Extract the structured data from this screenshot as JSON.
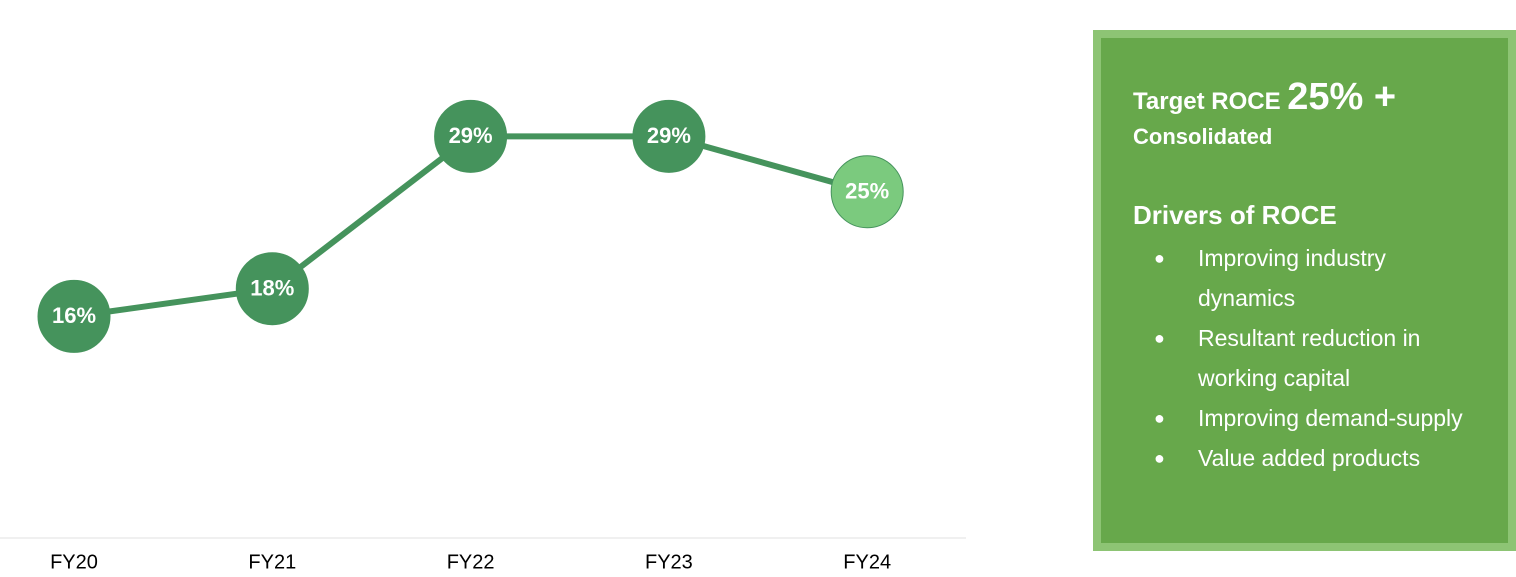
{
  "chart_data": {
    "type": "line",
    "categories": [
      "FY20",
      "FY21",
      "FY22",
      "FY23",
      "FY24"
    ],
    "series": [
      {
        "color": "#45935c",
        "values": [
          16,
          18,
          29,
          29,
          25
        ],
        "value_labels": [
          "16%",
          "18%",
          "29%",
          "29%",
          "25%"
        ],
        "point_colors": [
          "#45935c",
          "#45935c",
          "#45935c",
          "#45935c",
          "#7bca7e"
        ]
      }
    ]
  },
  "panel": {
    "title": "Target ROCE",
    "title_value": "25% +",
    "subtitle": "Consolidated",
    "heading": "Drivers of ROCE",
    "bullets": [
      "Improving industry dynamics",
      "Resultant reduction in working capital",
      "Improving demand-supply",
      "Value added products"
    ]
  }
}
